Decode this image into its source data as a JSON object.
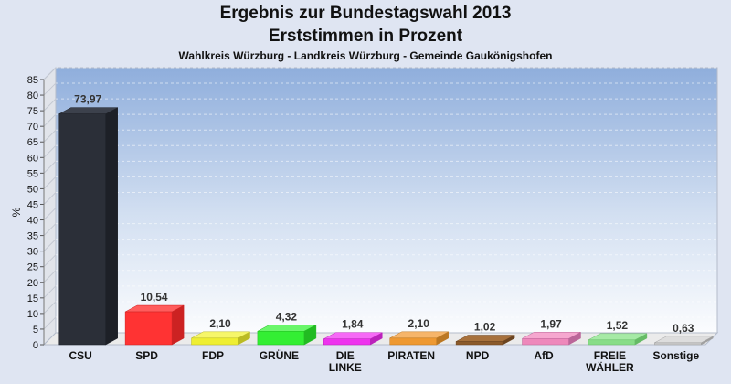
{
  "chart_data": {
    "type": "bar",
    "title": "Ergebnis zur Bundestagswahl 2013",
    "title_line2": "Erststimmen in Prozent",
    "subtitle": "Wahlkreis Würzburg - Landkreis Würzburg - Gemeinde Gaukönigshofen",
    "ylabel": "%",
    "xlabel": "",
    "ylim": [
      0,
      85
    ],
    "ytick_step": 5,
    "grid": true,
    "legend": "none",
    "categories": [
      "CSU",
      "SPD",
      "FDP",
      "GRÜNE",
      "DIE\nLINKE",
      "PIRATEN",
      "NPD",
      "AfD",
      "FREIE\nWÄHLER",
      "Sonstige"
    ],
    "values": [
      73.97,
      10.54,
      2.1,
      4.32,
      1.84,
      2.1,
      1.02,
      1.97,
      1.52,
      0.63
    ],
    "value_labels": [
      "73,97",
      "10,54",
      "2,10",
      "4,32",
      "1,84",
      "2,10",
      "1,02",
      "1,97",
      "1,52",
      "0,63"
    ],
    "colors": [
      "#2b2f38",
      "#ff3333",
      "#eeee33",
      "#33ee33",
      "#ee33ee",
      "#ee9933",
      "#8b5a2b",
      "#ee88bb",
      "#88dd88",
      "#c8c8c8"
    ],
    "colors_side": [
      "#1d2027",
      "#cc2222",
      "#bbbb22",
      "#22bb22",
      "#bb22bb",
      "#bb7722",
      "#6b4420",
      "#bb6699",
      "#66bb66",
      "#a0a0a0"
    ],
    "colors_top": [
      "#3c414c",
      "#ff5c5c",
      "#f6f66a",
      "#6af66a",
      "#f66af6",
      "#f6b56a",
      "#a7713c",
      "#f6a7cf",
      "#a6eaa6",
      "#dddddd"
    ]
  }
}
